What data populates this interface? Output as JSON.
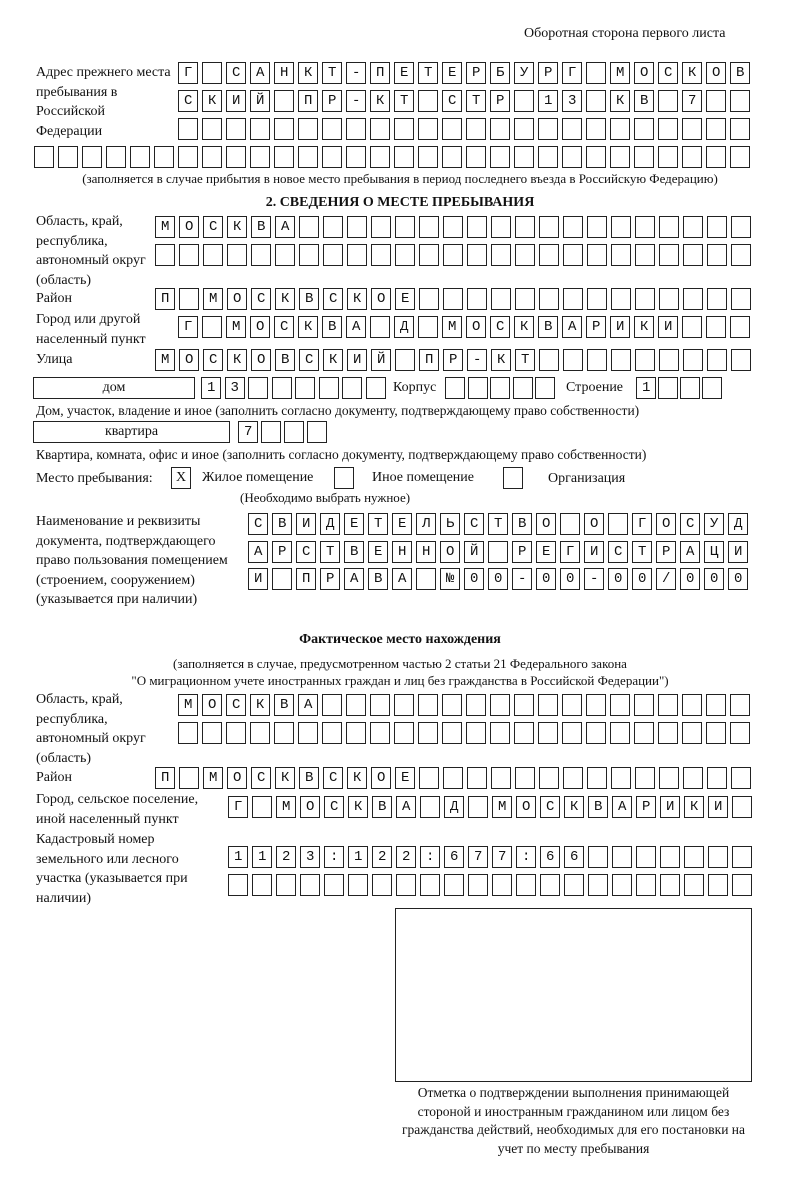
{
  "header": {
    "page_note": "Оборотная сторона первого листа"
  },
  "prev_address": {
    "label": "Адрес прежнего места пребывания в Российской Федерации",
    "rows": [
      "Г САНКТ-ПЕТЕРБУРГ МОСКОВ",
      "СКИЙ ПР-КТ СТР 13 КВ 7",
      "",
      ""
    ],
    "caption": "(заполняется в случае прибытия в новое место пребывания в период последнего въезда в Российскую Федерацию)"
  },
  "section2": {
    "title": "2. СВЕДЕНИЯ О МЕСТЕ ПРЕБЫВАНИЯ",
    "region_label": "Область, край, республика, автономный округ (область)",
    "region_rows": [
      "МОСКВА",
      ""
    ],
    "district_label": "Район",
    "district": "П МОСКВСКОЕ",
    "city_label": "Город или другой населенный пункт",
    "city": "Г МОСКВА Д МОСКВАРИКИ",
    "street_label": "Улица",
    "street": "МОСКОВСКИЙ ПР-КТ",
    "house_type": "дом",
    "house": "13",
    "korpus_label": "Корпус",
    "korpus": "",
    "building_label": "Строение",
    "building": "1",
    "house_caption": "Дом, участок, владение и иное (заполнить согласно документу, подтверждающему право собственности)",
    "flat_type": "квартира",
    "flat": "7",
    "flat_caption": "Квартира, комната, офис и иное (заполнить согласно документу, подтверждающему право собственности)",
    "place_label": "Место пребывания:",
    "place_options": [
      {
        "label": "Жилое помещение",
        "mark": "X"
      },
      {
        "label": "Иное помещение",
        "mark": ""
      },
      {
        "label": "Организация",
        "mark": ""
      }
    ],
    "place_hint": "(Необходимо выбрать нужное)",
    "doc_label": "Наименование и реквизиты документа, подтверждающего право пользования помещением (строением, сооружением) (указывается при наличии)",
    "doc_rows": [
      "СВИДЕТЕЛЬСТВО О ГОСУД",
      "АРСТВЕННОЙ РЕГИСТРАЦИ",
      "И ПРАВА №00-00-00/000"
    ]
  },
  "actual": {
    "title": "Фактическое место нахождения",
    "subtitle1": "(заполняется в случае, предусмотренном частью 2 статьи 21 Федерального закона",
    "subtitle2": "\"О миграционном учете иностранных граждан и лиц без гражданства в Российской Федерации\")",
    "region_label": "Область, край, республика, автономный округ (область)",
    "region_rows": [
      "МОСКВА",
      ""
    ],
    "district_label": "Район",
    "district": "П МОСКВСКОЕ",
    "city_label": "Город, сельское поселение, иной населенный пункт",
    "city": "Г МОСКВА Д МОСКВАРИКИ",
    "cadastre_label": "Кадастровый номер земельного или лесного участка (указывается при наличии)",
    "cadastre_rows": [
      "1123:122:677:66",
      ""
    ]
  },
  "stamp_caption": "Отметка о подтверждении выполнения принимающей стороной и иностранным гражданином или лицом без гражданства действий, необходимых для его постановки на учет по месту пребывания"
}
